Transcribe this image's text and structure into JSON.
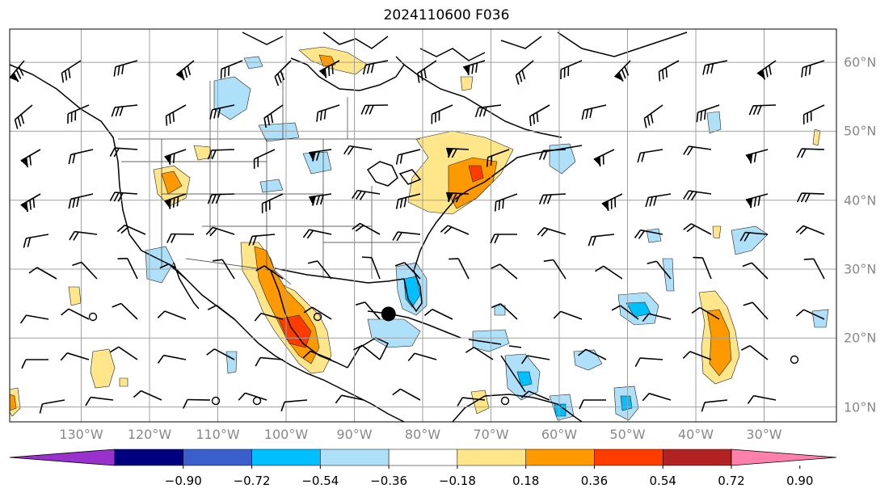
{
  "title": "2024110600 F036",
  "lon_labels": [
    "130°W",
    "120°W",
    "110°W",
    "100°W",
    "90°W",
    "80°W",
    "70°W",
    "60°W",
    "50°W",
    "40°W",
    "30°W"
  ],
  "lat_labels": [
    "60°N",
    "50°N",
    "40°N",
    "30°N",
    "20°N",
    "10°N"
  ],
  "colorbar": {
    "ticks": [
      "−0.90",
      "−0.72",
      "−0.54",
      "−0.36",
      "−0.18",
      "0.18",
      "0.36",
      "0.54",
      "0.72",
      "0.90"
    ],
    "colors": [
      "#9932cc",
      "#000080",
      "#3a5fcd",
      "#00bfff",
      "#aee0fa",
      "#ffffff",
      "#ffe68a",
      "#ff9900",
      "#ff3c00",
      "#b22222",
      "#ff80aa"
    ]
  },
  "map": {
    "projection": "plate carree",
    "extent": {
      "lon": [
        -139,
        -18
      ],
      "lat": [
        8,
        65
      ]
    },
    "grid": true,
    "marker": {
      "lon": -85,
      "lat": 23.5
    }
  }
}
